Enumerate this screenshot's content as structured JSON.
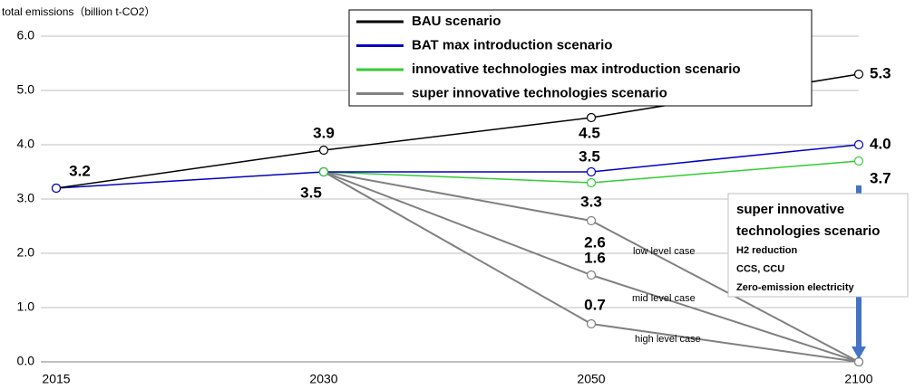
{
  "chart_data": {
    "type": "line",
    "y_label": "total emissions（billion t-CO2）",
    "categories": [
      "2015",
      "2030",
      "2050",
      "2100"
    ],
    "ylim": [
      0,
      6
    ],
    "yticks": [
      {
        "value": 0,
        "label": "0.0"
      },
      {
        "value": 1,
        "label": "1.0"
      },
      {
        "value": 2,
        "label": "2.0"
      },
      {
        "value": 3,
        "label": "3.0"
      },
      {
        "value": 4,
        "label": "4.0"
      },
      {
        "value": 5,
        "label": "5.0"
      },
      {
        "value": 6,
        "label": "6.0"
      }
    ],
    "grid": true,
    "series": [
      {
        "name": "BAU scenario",
        "color": "#000000",
        "label_color": "#000000",
        "values": [
          3.2,
          3.9,
          4.5,
          5.3
        ],
        "value_labels": [
          "3.2",
          "3.9",
          "4.5",
          "5.3"
        ]
      },
      {
        "name": "BAT max introduction scenario",
        "color": "#0000c0",
        "label_color": "#2233bb",
        "values": [
          3.2,
          3.5,
          3.5,
          4.0
        ],
        "value_labels": [
          null,
          "3.5",
          "3.5",
          "4.0"
        ]
      },
      {
        "name": "innovative technologies max introduction scenario",
        "color": "#33cc33",
        "label_color": "#4e8a2e",
        "values": [
          null,
          3.5,
          3.3,
          3.7
        ],
        "value_labels": [
          null,
          null,
          "3.3",
          "3.7"
        ]
      }
    ],
    "super_series": {
      "name": "super innovative technologies scenario",
      "color": "#808080",
      "cases": [
        {
          "name": "low level case",
          "values": [
            null,
            3.5,
            2.6,
            0
          ],
          "value_labels": [
            null,
            null,
            "2.6",
            null
          ]
        },
        {
          "name": "mid level case",
          "values": [
            null,
            3.5,
            1.6,
            0
          ],
          "value_labels": [
            null,
            null,
            "1.6",
            null
          ]
        },
        {
          "name": "high level case",
          "values": [
            null,
            3.5,
            0.7,
            0
          ],
          "value_labels": [
            null,
            null,
            "0.7",
            null
          ]
        }
      ]
    },
    "annotation": {
      "title": [
        "super innovative",
        "technologies scenario"
      ],
      "items": [
        "H2 reduction",
        "CCS, CCU",
        "Zero-emission electricity"
      ]
    }
  }
}
